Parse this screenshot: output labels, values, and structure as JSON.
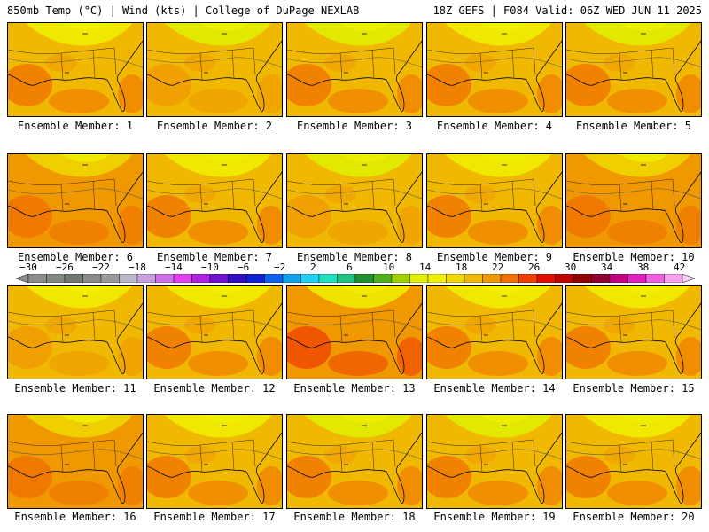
{
  "header": {
    "left": "850mb Temp (°C) | Wind (kts) | College of DuPage NEXLAB",
    "right": "18Z GEFS | F084 Valid: 06Z WED JUN 11 2025"
  },
  "colors": {
    "-30": "#8c8c8c",
    "-28": "#808a80",
    "-26": "#6e786e",
    "-24": "#8a8a8a",
    "-22": "#9a9a9a",
    "-20": "#b8b8c8",
    "-18": "#c8a0e0",
    "-16": "#d070e8",
    "-14": "#e040f0",
    "-12": "#b020e0",
    "-10": "#7010d0",
    "-8": "#3010c0",
    "-6": "#1020d0",
    "-4": "#1060f0",
    "-2": "#10a0f0",
    "0": "#20d0f0",
    "2": "#20e0c0",
    "4": "#20c080",
    "6": "#209030",
    "8": "#50b020",
    "10": "#a0d000",
    "12": "#e0f000",
    "14": "#f0f000",
    "16": "#f0d800",
    "18": "#f0b800",
    "20": "#f09800",
    "22": "#f07000",
    "24": "#f04000",
    "26": "#e01000",
    "28": "#c00000",
    "30": "#900000",
    "32": "#900030",
    "34": "#c00080",
    "36": "#e020c0",
    "38": "#f060e0",
    "40": "#f8a0f0",
    "42": "#f8d0f8"
  },
  "colorbar": {
    "labels": [
      "−30",
      "−26",
      "−22",
      "−18",
      "−14",
      "−10",
      "−6",
      "−2",
      "2",
      "6",
      "10",
      "14",
      "18",
      "22",
      "26",
      "30",
      "34",
      "38",
      "42"
    ]
  },
  "members": [
    {
      "label": "Ensemble Member: 1",
      "dominant": "18",
      "warm": "22",
      "cool": "14"
    },
    {
      "label": "Ensemble Member: 2",
      "dominant": "18",
      "warm": "20",
      "cool": "12"
    },
    {
      "label": "Ensemble Member: 3",
      "dominant": "18",
      "warm": "22",
      "cool": "12"
    },
    {
      "label": "Ensemble Member: 4",
      "dominant": "18",
      "warm": "22",
      "cool": "14"
    },
    {
      "label": "Ensemble Member: 5",
      "dominant": "18",
      "warm": "22",
      "cool": "12"
    },
    {
      "label": "Ensemble Member: 6",
      "dominant": "20",
      "warm": "22",
      "cool": "16"
    },
    {
      "label": "Ensemble Member: 7",
      "dominant": "18",
      "warm": "22",
      "cool": "14"
    },
    {
      "label": "Ensemble Member: 8",
      "dominant": "18",
      "warm": "20",
      "cool": "12"
    },
    {
      "label": "Ensemble Member: 9",
      "dominant": "18",
      "warm": "22",
      "cool": "14"
    },
    {
      "label": "Ensemble Member: 10",
      "dominant": "20",
      "warm": "22",
      "cool": "16"
    },
    {
      "label": "Ensemble Member: 11",
      "dominant": "18",
      "warm": "20",
      "cool": "14"
    },
    {
      "label": "Ensemble Member: 12",
      "dominant": "18",
      "warm": "22",
      "cool": "14"
    },
    {
      "label": "Ensemble Member: 13",
      "dominant": "20",
      "warm": "24",
      "cool": "14"
    },
    {
      "label": "Ensemble Member: 14",
      "dominant": "18",
      "warm": "22",
      "cool": "14"
    },
    {
      "label": "Ensemble Member: 15",
      "dominant": "18",
      "warm": "22",
      "cool": "14"
    },
    {
      "label": "Ensemble Member: 16",
      "dominant": "20",
      "warm": "22",
      "cool": "16"
    },
    {
      "label": "Ensemble Member: 17",
      "dominant": "18",
      "warm": "22",
      "cool": "14"
    },
    {
      "label": "Ensemble Member: 18",
      "dominant": "18",
      "warm": "22",
      "cool": "12"
    },
    {
      "label": "Ensemble Member: 19",
      "dominant": "18",
      "warm": "22",
      "cool": "12"
    },
    {
      "label": "Ensemble Member: 20",
      "dominant": "18",
      "warm": "22",
      "cool": "14"
    }
  ]
}
